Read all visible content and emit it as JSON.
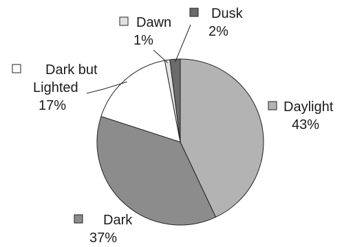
{
  "chart_data": {
    "type": "pie",
    "labels": [
      "Daylight",
      "Dark",
      "Dark but Lighted",
      "Dawn",
      "Dusk"
    ],
    "values": [
      43,
      37,
      17,
      1,
      2
    ],
    "value_labels": [
      "43%",
      "37%",
      "17%",
      "1%",
      "2%"
    ],
    "colors": [
      "#b3b3b3",
      "#8c8c8c",
      "#ffffff",
      "#e2e2e2",
      "#6b6b6b"
    ],
    "label_lines": [
      [
        "Daylight"
      ],
      [
        "Dark"
      ],
      [
        "Dark but",
        "Lighted"
      ],
      [
        "Dawn"
      ],
      [
        "Dusk"
      ]
    ],
    "start_angle_deg": 0,
    "direction": "clockwise",
    "legend": "none"
  }
}
